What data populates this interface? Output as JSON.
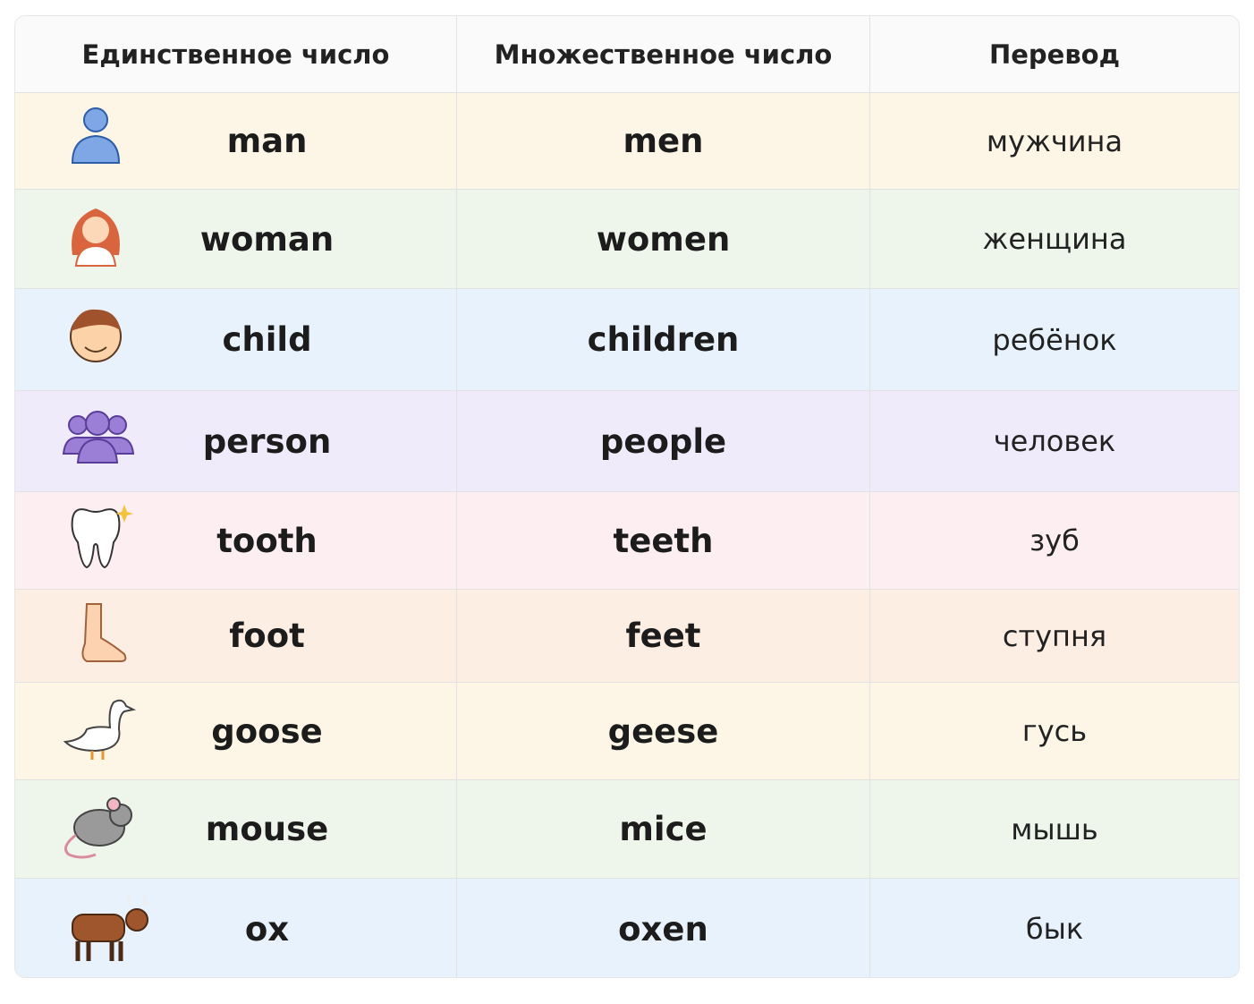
{
  "table": {
    "header": [
      "Единственное число",
      "Множественное число",
      "Перевод"
    ],
    "rows": [
      [
        "man",
        "men",
        "мужчина"
      ],
      [
        "woman",
        "women",
        "женщина"
      ],
      [
        "child",
        "children",
        "ребёнок"
      ],
      [
        "person",
        "people",
        "человек"
      ],
      [
        "tooth",
        "teeth",
        "зуб"
      ],
      [
        "foot",
        "feet",
        "ступня"
      ],
      [
        "goose",
        "geese",
        "гусь"
      ],
      [
        "mouse",
        "mice",
        "мышь"
      ],
      [
        "ox",
        "oxen",
        "бык"
      ]
    ]
  }
}
